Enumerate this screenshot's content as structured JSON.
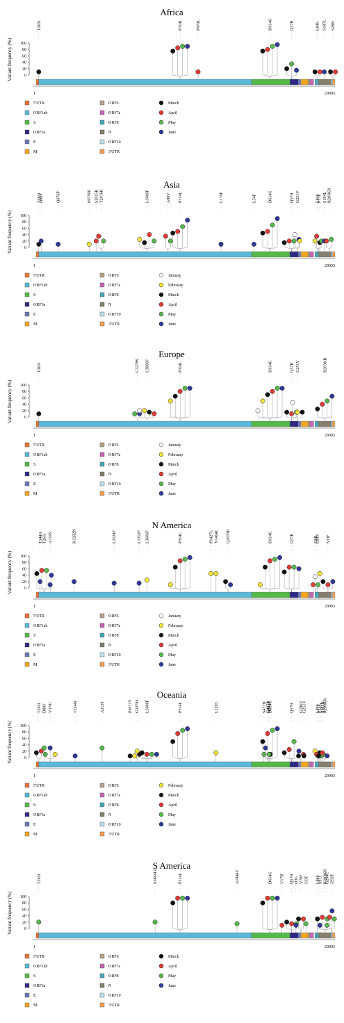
{
  "figure": {
    "ylabel": "Variant frequency (%)",
    "xmin_label": "1",
    "xmax_label": "29903",
    "yticks": [
      "0",
      "20",
      "40",
      "60",
      "80",
      "100"
    ]
  },
  "colors": {
    "5'UTR": "#e8743b",
    "ORF1ab": "#5bb8d6",
    "S": "#55b848",
    "ORF3a": "#2e2a84",
    "E": "#6a78b6",
    "M": "#f3a620",
    "ORF6": "#b8a38a",
    "ORF7a": "#c567b4",
    "ORF8": "#4aa7b8",
    "N": "#867e6f",
    "ORF10": "#bfdff0",
    "3'UTR": "#f5a050",
    "January": "#ffffff",
    "February": "#f2e33a",
    "March": "#111111",
    "April": "#e23a35",
    "May": "#58b84e",
    "June": "#30389b"
  },
  "legend_genes": [
    "5'UTR",
    "ORF1ab",
    "S",
    "ORF3a",
    "E",
    "M",
    "ORF6",
    "ORF7a",
    "ORF8",
    "N",
    "ORF10",
    "3'UTR"
  ],
  "chart_data": [
    {
      "type": "lollipop",
      "title": "Africa",
      "ylabel": "Variant frequency (%)",
      "ylim": [
        0,
        100
      ],
      "months": [
        "March",
        "April",
        "May",
        "June"
      ],
      "mutations": [
        {
          "label": "T265I",
          "pos": 265,
          "values": {
            "March": 10
          }
        },
        {
          "label": "P314L",
          "pos": 14408,
          "values": {
            "March": 75,
            "April": 85,
            "May": 90,
            "June": 90
          }
        },
        {
          "label": "P970L",
          "pos": 16200,
          "values": {
            "April": 10
          }
        },
        {
          "label": "D614G",
          "pos": 23403,
          "values": {
            "March": 75,
            "April": 80,
            "May": 90,
            "June": 95
          }
        },
        {
          "label": "Q57H",
          "pos": 25563,
          "values": {
            "March": 20,
            "May": 35,
            "June": 15
          }
        },
        {
          "label": "L84S",
          "pos": 28144,
          "values": {
            "March": 10,
            "April": 10
          }
        },
        {
          "label": "S187L",
          "pos": 28833,
          "values": {
            "June": 10
          }
        },
        {
          "label": "S28N",
          "pos": 29700,
          "values": {
            "March": 10,
            "April": 10
          }
        }
      ]
    },
    {
      "type": "lollipop",
      "title": "Asia",
      "ylabel": "Variant frequency (%)",
      "ylim": [
        0,
        100
      ],
      "months": [
        "January",
        "February",
        "March",
        "April",
        "May",
        "June"
      ],
      "mutations": [
        {
          "label": "T265I",
          "pos": 265,
          "values": {
            "March": 10
          }
        },
        {
          "label": "D80F",
          "pos": 500,
          "values": {
            "June": 20
          }
        },
        {
          "label": "Q676P",
          "pos": 2200,
          "values": {
            "June": 10
          }
        },
        {
          "label": "M1769I",
          "pos": 5300,
          "values": {
            "February": 10
          }
        },
        {
          "label": "S2015R",
          "pos": 6000,
          "values": {
            "April": 20
          }
        },
        {
          "label": "T2016K",
          "pos": 6500,
          "values": {
            "April": 35,
            "May": 20
          }
        },
        {
          "label": "L3606F",
          "pos": 11083,
          "values": {
            "February": 25,
            "March": 15,
            "April": 40,
            "May": 20
          }
        },
        {
          "label": "A88V",
          "pos": 13200,
          "values": {
            "April": 35,
            "May": 20
          }
        },
        {
          "label": "P314L",
          "pos": 14408,
          "values": {
            "March": 45,
            "April": 50,
            "May": 65,
            "June": 85
          }
        },
        {
          "label": "L170F",
          "pos": 18500,
          "values": {
            "June": 10
          }
        },
        {
          "label": "L54F",
          "pos": 21800,
          "values": {
            "June": 10
          }
        },
        {
          "label": "D614G",
          "pos": 23403,
          "values": {
            "March": 45,
            "April": 50,
            "May": 70,
            "June": 90
          }
        },
        {
          "label": "Q57H",
          "pos": 25563,
          "values": {
            "March": 15,
            "April": 20,
            "May": 20,
            "June": 25
          }
        },
        {
          "label": "G251V",
          "pos": 26144,
          "values": {
            "January": 40,
            "February": 20
          }
        },
        {
          "label": "L84S",
          "pos": 28144,
          "values": {
            "February": 20,
            "March": 15
          }
        },
        {
          "label": "P13L",
          "pos": 28311,
          "values": {
            "April": 35,
            "May": 20
          }
        },
        {
          "label": "S194L",
          "pos": 28854,
          "values": {
            "June": 20
          }
        },
        {
          "label": "R203KR",
          "pos": 29300,
          "values": {
            "April": 20,
            "May": 25
          }
        }
      ]
    },
    {
      "type": "lollipop",
      "title": "Europe",
      "ylabel": "Variant frequency (%)",
      "ylim": [
        0,
        100
      ],
      "months": [
        "January",
        "February",
        "March",
        "April",
        "May",
        "June"
      ],
      "mutations": [
        {
          "label": "T265I",
          "pos": 265,
          "values": {
            "March": 10
          }
        },
        {
          "label": "G3278S",
          "pos": 10100,
          "values": {
            "May": 10,
            "June": 10
          }
        },
        {
          "label": "L3606F",
          "pos": 11083,
          "values": {
            "January": 20,
            "February": 20,
            "March": 15,
            "April": 10
          }
        },
        {
          "label": "P314L",
          "pos": 14408,
          "values": {
            "February": 50,
            "March": 65,
            "April": 80,
            "May": 90,
            "June": 90
          }
        },
        {
          "label": "D614G",
          "pos": 23403,
          "values": {
            "January": 20,
            "February": 50,
            "March": 70,
            "April": 80,
            "May": 90,
            "June": 90
          }
        },
        {
          "label": "Q57H",
          "pos": 25563,
          "values": {
            "March": 15,
            "April": 10,
            "May": 15
          }
        },
        {
          "label": "G251V",
          "pos": 26144,
          "values": {
            "January": 45,
            "February": 15,
            "March": 15
          }
        },
        {
          "label": "R203KR",
          "pos": 28881,
          "values": {
            "March": 25,
            "April": 40,
            "May": 50,
            "June": 65
          }
        }
      ]
    },
    {
      "type": "lollipop",
      "title": "N America",
      "ylabel": "Variant frequency (%)",
      "ylim": [
        0,
        100
      ],
      "months": [
        "January",
        "February",
        "March",
        "April",
        "May",
        "June"
      ],
      "mutations": [
        {
          "label": "T144A",
          "pos": 400,
          "values": {
            "June": 20
          }
        },
        {
          "label": "T265I",
          "pos": 800,
          "values": {
            "March": 45,
            "April": 55,
            "May": 55,
            "June": 40
          }
        },
        {
          "label": "A316V",
          "pos": 1400,
          "values": {
            "June": 10
          }
        },
        {
          "label": "K1202N",
          "pos": 3800,
          "values": {
            "June": 20
          }
        },
        {
          "label": "L2524F",
          "pos": 7800,
          "values": {
            "June": 15
          }
        },
        {
          "label": "L3352F",
          "pos": 10300,
          "values": {
            "June": 15
          }
        },
        {
          "label": "L3606F",
          "pos": 11083,
          "values": {
            "February": 25
          }
        },
        {
          "label": "P314L",
          "pos": 14408,
          "values": {
            "February": 10,
            "March": 65,
            "April": 85,
            "May": 90,
            "June": 95
          }
        },
        {
          "label": "P1427L",
          "pos": 17500,
          "values": {
            "February": 45
          }
        },
        {
          "label": "Y1464C",
          "pos": 18000,
          "values": {
            "February": 45
          }
        },
        {
          "label": "Q2070H",
          "pos": 19200,
          "values": {
            "March": 20,
            "June": 10
          }
        },
        {
          "label": "D614G",
          "pos": 23403,
          "values": {
            "February": 10,
            "March": 65,
            "April": 85,
            "May": 90,
            "June": 95
          }
        },
        {
          "label": "Q57H",
          "pos": 25563,
          "values": {
            "March": 50,
            "April": 65,
            "May": 65,
            "June": 60
          }
        },
        {
          "label": "S24L",
          "pos": 27964,
          "values": {
            "April": 10,
            "May": 10
          }
        },
        {
          "label": "L84S",
          "pos": 28144,
          "values": {
            "January": 35,
            "February": 45
          }
        },
        {
          "label": "S33F",
          "pos": 29200,
          "values": {
            "March": 20,
            "April": 10,
            "June": 20
          }
        }
      ]
    },
    {
      "type": "lollipop",
      "title": "Oceania",
      "ylabel": "Variant frequency (%)",
      "ylim": [
        0,
        100
      ],
      "months": [
        "February",
        "March",
        "April",
        "May",
        "June"
      ],
      "mutations": [
        {
          "label": "T265I",
          "pos": 265,
          "values": {
            "March": 15,
            "April": 20
          }
        },
        {
          "label": "D80F",
          "pos": 800,
          "values": {
            "May": 30
          }
        },
        {
          "label": "V378I",
          "pos": 1400,
          "values": {
            "May": 10,
            "June": 30,
            "February": 10
          }
        },
        {
          "label": "T1246I",
          "pos": 3900,
          "values": {
            "June": 5
          }
        },
        {
          "label": "A2129",
          "pos": 6600,
          "values": {
            "May": 30
          }
        },
        {
          "label": "P3071Y",
          "pos": 9400,
          "values": {
            "March": 5
          }
        },
        {
          "label": "G3278S",
          "pos": 10100,
          "values": {
            "February": 5,
            "March": 10
          }
        },
        {
          "label": "L3606F",
          "pos": 11083,
          "values": {
            "February": 20,
            "March": 15,
            "April": 10,
            "May": 10,
            "June": 10
          }
        },
        {
          "label": "P314L",
          "pos": 14408,
          "values": {
            "March": 50,
            "April": 75,
            "May": 85,
            "June": 90
          }
        },
        {
          "label": "L1203",
          "pos": 18000,
          "values": {
            "February": 15
          }
        },
        {
          "label": "S477N",
          "pos": 22800,
          "values": {
            "May": 10
          }
        },
        {
          "label": "G485R",
          "pos": 23200,
          "values": {
            "June": 30,
            "March": 10
          }
        },
        {
          "label": "N501T",
          "pos": 23300,
          "values": {
            "May": 10
          }
        },
        {
          "label": "D614G",
          "pos": 23403,
          "values": {
            "March": 50,
            "April": 75,
            "May": 85,
            "June": 90
          }
        },
        {
          "label": "Q57H",
          "pos": 25563,
          "values": {
            "March": 15,
            "April": 25,
            "May": 50,
            "June": 20
          }
        },
        {
          "label": "G196V",
          "pos": 26500,
          "values": {
            "March": 5,
            "April": 10
          }
        },
        {
          "label": "G251V",
          "pos": 26800,
          "values": {
            "March": 5
          }
        },
        {
          "label": "L84S",
          "pos": 28144,
          "values": {
            "February": 20,
            "March": 15
          }
        },
        {
          "label": "P13L",
          "pos": 28300,
          "values": {
            "April": 10,
            "May": 5
          }
        },
        {
          "label": "S197L",
          "pos": 28500,
          "values": {
            "March": 5,
            "June": 10
          }
        },
        {
          "label": "S202N",
          "pos": 28700,
          "values": {
            "May": 10
          }
        },
        {
          "label": "R203KR",
          "pos": 28881,
          "values": {
            "April": 15,
            "June": 5
          }
        }
      ]
    },
    {
      "type": "lollipop",
      "title": "S America",
      "ylabel": "Variant frequency (%)",
      "ylim": [
        0,
        100
      ],
      "months": [
        "March",
        "April",
        "May",
        "June"
      ],
      "mutations": [
        {
          "label": "T265I",
          "pos": 265,
          "values": {
            "May": 20
          }
        },
        {
          "label": "S3884LL",
          "pos": 11900,
          "values": {
            "May": 20
          }
        },
        {
          "label": "P314L",
          "pos": 14408,
          "values": {
            "March": 80,
            "April": 95,
            "May": 95,
            "June": 95
          }
        },
        {
          "label": "A1844V",
          "pos": 20100,
          "values": {
            "May": 15
          }
        },
        {
          "label": "D614G",
          "pos": 23403,
          "values": {
            "March": 80,
            "April": 95,
            "May": 95,
            "June": 95
          }
        },
        {
          "label": "V17lF",
          "pos": 24600,
          "values": {
            "April": 10
          }
        },
        {
          "label": "Q57H",
          "pos": 25563,
          "values": {
            "March": 20,
            "April": 15,
            "May": 15
          }
        },
        {
          "label": "D3G",
          "pos": 26000,
          "values": {
            "June": 10
          }
        },
        {
          "label": "V70F",
          "pos": 26500,
          "values": {
            "March": 30,
            "April": 30
          }
        },
        {
          "label": "I33T",
          "pos": 27000,
          "values": {
            "May": 15
          }
        },
        {
          "label": "L84S",
          "pos": 28144,
          "values": {
            "May": 30
          }
        },
        {
          "label": "S97I",
          "pos": 28400,
          "values": {
            "June": 10
          }
        },
        {
          "label": "R203KR",
          "pos": 28881,
          "values": {
            "March": 30,
            "April": 35,
            "May": 30,
            "June": 55
          }
        },
        {
          "label": "G204C",
          "pos": 29100,
          "values": {
            "May": 10
          }
        },
        {
          "label": "I292T",
          "pos": 29600,
          "values": {
            "April": 35,
            "May": 30
          }
        }
      ]
    }
  ]
}
